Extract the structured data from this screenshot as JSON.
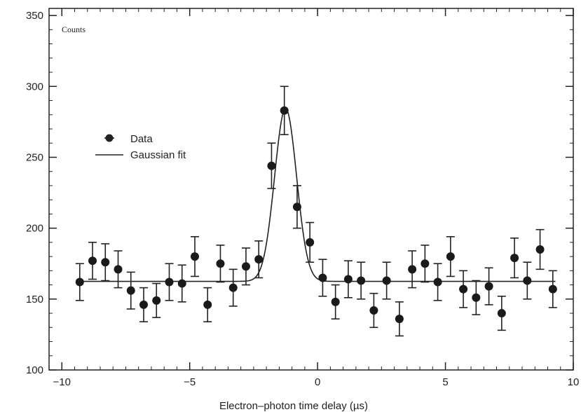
{
  "chart_data": {
    "type": "scatter",
    "ylabel": "Counts",
    "xlabel": "Electron–photon time delay (µs)",
    "xlim": [
      -10.5,
      10
    ],
    "ylim": [
      100,
      355
    ],
    "x_ticks": [
      -10,
      -5,
      0,
      5,
      10
    ],
    "x_tick_labels": [
      "−10",
      "−5",
      "0",
      "5",
      "10"
    ],
    "y_ticks": [
      100,
      150,
      200,
      250,
      300,
      350
    ],
    "y_tick_labels": [
      "100",
      "150",
      "200",
      "250",
      "300",
      "350"
    ],
    "legend": {
      "position": "upper-left",
      "entries": [
        "Data",
        "Gaussian fit"
      ]
    },
    "series": [
      {
        "name": "Data",
        "kind": "points-with-errorbars",
        "points": [
          {
            "x": -9.3,
            "y": 162,
            "err": 13
          },
          {
            "x": -8.8,
            "y": 177,
            "err": 13
          },
          {
            "x": -8.3,
            "y": 176,
            "err": 13
          },
          {
            "x": -7.8,
            "y": 171,
            "err": 13
          },
          {
            "x": -7.3,
            "y": 156,
            "err": 13
          },
          {
            "x": -6.8,
            "y": 146,
            "err": 12
          },
          {
            "x": -6.3,
            "y": 149,
            "err": 12
          },
          {
            "x": -5.8,
            "y": 162,
            "err": 13
          },
          {
            "x": -5.3,
            "y": 161,
            "err": 13
          },
          {
            "x": -4.8,
            "y": 180,
            "err": 14
          },
          {
            "x": -4.3,
            "y": 146,
            "err": 12
          },
          {
            "x": -3.8,
            "y": 175,
            "err": 13
          },
          {
            "x": -3.3,
            "y": 158,
            "err": 13
          },
          {
            "x": -2.8,
            "y": 173,
            "err": 13
          },
          {
            "x": -2.3,
            "y": 178,
            "err": 13
          },
          {
            "x": -1.8,
            "y": 244,
            "err": 16
          },
          {
            "x": -1.3,
            "y": 283,
            "err": 17
          },
          {
            "x": -0.8,
            "y": 215,
            "err": 15
          },
          {
            "x": -0.3,
            "y": 190,
            "err": 14
          },
          {
            "x": 0.2,
            "y": 165,
            "err": 13
          },
          {
            "x": 0.7,
            "y": 148,
            "err": 12
          },
          {
            "x": 1.2,
            "y": 164,
            "err": 13
          },
          {
            "x": 1.7,
            "y": 163,
            "err": 13
          },
          {
            "x": 2.2,
            "y": 142,
            "err": 12
          },
          {
            "x": 2.7,
            "y": 163,
            "err": 13
          },
          {
            "x": 3.2,
            "y": 136,
            "err": 12
          },
          {
            "x": 3.7,
            "y": 171,
            "err": 13
          },
          {
            "x": 4.2,
            "y": 175,
            "err": 13
          },
          {
            "x": 4.7,
            "y": 162,
            "err": 13
          },
          {
            "x": 5.2,
            "y": 180,
            "err": 14
          },
          {
            "x": 5.7,
            "y": 157,
            "err": 13
          },
          {
            "x": 6.2,
            "y": 151,
            "err": 12
          },
          {
            "x": 6.7,
            "y": 159,
            "err": 13
          },
          {
            "x": 7.2,
            "y": 140,
            "err": 12
          },
          {
            "x": 7.7,
            "y": 179,
            "err": 14
          },
          {
            "x": 8.2,
            "y": 163,
            "err": 13
          },
          {
            "x": 8.7,
            "y": 185,
            "err": 14
          },
          {
            "x": 9.2,
            "y": 157,
            "err": 13
          }
        ]
      },
      {
        "name": "Gaussian fit",
        "kind": "curve",
        "baseline": 162.5,
        "amplitude": 122,
        "center": -1.25,
        "sigma": 0.43,
        "x_range": [
          -9.3,
          9.3
        ]
      }
    ],
    "grid": false
  }
}
